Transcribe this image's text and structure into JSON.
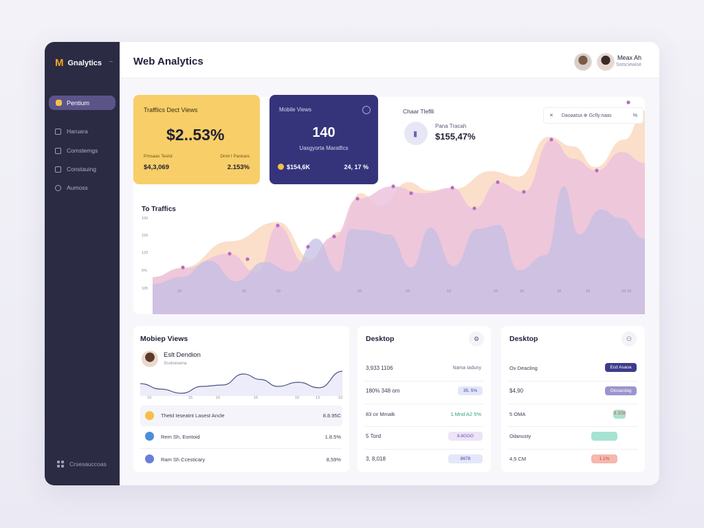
{
  "sidebar": {
    "brand_logo": "M",
    "brand_name": "Gnalytics",
    "active_item": "Pentium",
    "items": [
      {
        "label": "Haruara",
        "icon": "chart-icon"
      },
      {
        "label": "Comstemgs",
        "icon": "layers-icon"
      },
      {
        "label": "Constauing",
        "icon": "table-icon"
      },
      {
        "label": "Aumoss",
        "icon": "clock-icon"
      }
    ],
    "bottom_label": "Crsesauccoas"
  },
  "header": {
    "title": "Web Analytics",
    "user_name": "Meax Ah",
    "user_role": "Sotsciewise"
  },
  "card_yellow": {
    "title": "Trafflics Dect Views",
    "value": "$2..53%",
    "left_label": "Pmsaas Teslst",
    "left_value": "$4,3,069",
    "right_label": "Dnnt I Pastues",
    "right_value": "2.153%"
  },
  "card_navy": {
    "title": "Mobile Views",
    "value": "140",
    "subtitle": "Uasgyorta Maratfics",
    "left_value": "$154,6K",
    "right_value": "24, 17 %"
  },
  "chart_card": {
    "title": "Chaar Tleflli",
    "metric_label": "Pana Tracah",
    "metric_value": "$155,47%",
    "filter_close": "✕",
    "filter_text": "Daoaatsa ⊕ Gcfly:naas",
    "filter_extra": "%",
    "traffic_title": "To Traffics",
    "y_ticks": [
      "100",
      "150",
      "120",
      "5%",
      "105"
    ],
    "x_ticks": [
      "10",
      "10",
      "10",
      "10",
      "10",
      "10",
      "10",
      "16",
      "10",
      "10",
      "10",
      "10"
    ]
  },
  "panel_mobile": {
    "title": "Mobiep Views",
    "person_name": "Eslt Dendion",
    "person_role": "Ssslsesena",
    "spark_ticks": [
      "10",
      "15",
      "10",
      "10",
      "10",
      "13",
      "10"
    ],
    "rows": [
      {
        "label": "Thetd Ieseatnt Lasest Ancle",
        "value": "8.8.95C",
        "coin": "#f5c04a"
      },
      {
        "label": "Rem Sh, Eontoid",
        "value": "1.8.5%",
        "coin": "#4a8fd8"
      },
      {
        "label": "Ram Sh Ccesticary",
        "value": "8,59%",
        "coin": "#6a7fd6"
      }
    ]
  },
  "panel_desktop1": {
    "title": "Desktop",
    "rows": [
      {
        "label": "3,933 1106",
        "value": "Nama Iaduny"
      },
      {
        "label": "180% 348 om",
        "value": "35, 5%"
      },
      {
        "label": "83 cir Mmalk",
        "value": "1.Mnd A2 5%"
      },
      {
        "label": "5 Tord",
        "value": "8.8GGG"
      },
      {
        "label": "3, 8,018",
        "value": "8678"
      }
    ]
  },
  "panel_desktop2": {
    "title": "Desktop",
    "rows": [
      {
        "label": "Ov Deacling",
        "value": "Ecd Asaoa"
      },
      {
        "label": "$4,90",
        "value": "Olosacdag"
      },
      {
        "label": "5 OMA",
        "value": "8.308"
      },
      {
        "label": "Oilanusty",
        "value": ""
      },
      {
        "label": "4,5 CM",
        "value": "1.1%"
      }
    ]
  },
  "colors": {
    "sidebar": "#2b2b43",
    "accent": "#5a5489",
    "yellow": "#f8ce68",
    "navy": "#35347b",
    "pink_area": "#ecc3dd",
    "peach_area": "#fbdcc4",
    "lavender_area": "#c4bfe4"
  }
}
